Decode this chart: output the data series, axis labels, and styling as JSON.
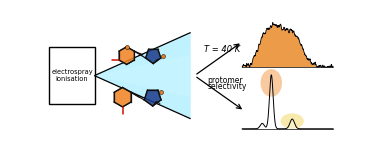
{
  "fig_width": 3.78,
  "fig_height": 1.49,
  "dpi": 100,
  "bg_color": "#ffffff",
  "box_text": "electrospray\nionisation",
  "beam_color_light": "#B8F0FF",
  "beam_color_mid": "#7FDFFE",
  "beam_color_dark": "#40CFEE",
  "label_T": "T = 40 K",
  "label_protomer_line1": "protomer",
  "label_protomer_line2": "selectivity",
  "orange_fill": "#E8821A",
  "black_line": "#111111",
  "mol_bond_color": "#111111",
  "mol_orange": "#F08020",
  "mol_blue": "#1A3A8A",
  "mol_red": "#CC1100",
  "circle_orange": "#F5A050",
  "circle_yellow": "#F5E080"
}
